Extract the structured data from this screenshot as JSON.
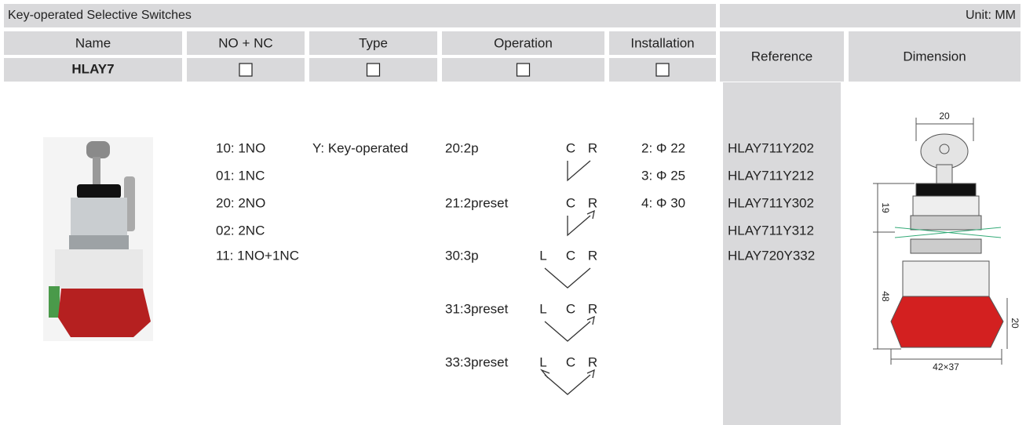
{
  "header": {
    "title": "Key-operated Selective Switches",
    "unit": "Unit: MM"
  },
  "table": {
    "columns": [
      "Name",
      "NO + NC",
      "Type",
      "Operation",
      "Installation",
      "Reference",
      "Dimension"
    ],
    "model": "HLAY7"
  },
  "contacts": [
    "10:  1NO",
    "01:  1NC",
    "20:  2NO",
    "02:  2NC",
    "11:  1NO+1NC"
  ],
  "type": "Y: Key-operated",
  "operations": [
    {
      "label": "20:2p",
      "positions": [
        "C",
        "R"
      ]
    },
    {
      "label": "21:2preset",
      "positions": [
        "C",
        "R"
      ]
    },
    {
      "label": "30:3p",
      "positions": [
        "L",
        "C",
        "R"
      ]
    },
    {
      "label": "31:3preset",
      "positions": [
        "L",
        "C",
        "R"
      ]
    },
    {
      "label": "33:3preset",
      "positions": [
        "L",
        "C",
        "R"
      ]
    }
  ],
  "installation": [
    "2: Φ 22",
    "3: Φ 25",
    "4: Φ 30"
  ],
  "references": [
    "HLAY711Y202",
    "HLAY711Y212",
    "HLAY711Y302",
    "HLAY711Y312",
    "HLAY720Y332"
  ],
  "dimension_labels": [
    "20",
    "19",
    "48",
    "20",
    "42×37"
  ]
}
